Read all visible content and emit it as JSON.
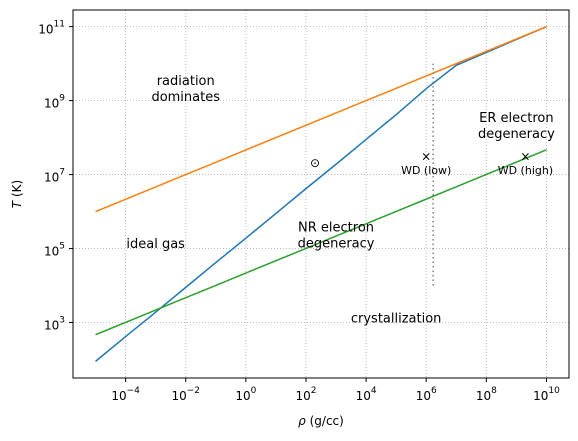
{
  "chart_data": {
    "type": "line",
    "xlabel": "ρ (g/cc)",
    "ylabel": "T (K)",
    "xscale": "log",
    "yscale": "log",
    "grid": true,
    "xlim": [
      1.778e-06,
      56230000000.0
    ],
    "ylim": [
      31.6,
      281800000000.0
    ],
    "xticks": [
      {
        "value": 0.0001,
        "label": "10−4"
      },
      {
        "value": 0.01,
        "label": "10−2"
      },
      {
        "value": 1,
        "label": "100"
      },
      {
        "value": 100,
        "label": "102"
      },
      {
        "value": 10000,
        "label": "104"
      },
      {
        "value": 1000000,
        "label": "106"
      },
      {
        "value": 100000000,
        "label": "108"
      },
      {
        "value": 10000000000,
        "label": "1010"
      }
    ],
    "yticks": [
      {
        "value": 1000,
        "label": "103"
      },
      {
        "value": 100000,
        "label": "105"
      },
      {
        "value": 10000000,
        "label": "107"
      },
      {
        "value": 1000000000,
        "label": "109"
      },
      {
        "value": 100000000000,
        "label": "1011"
      }
    ],
    "x": [
      1e-05,
      0.0001,
      0.001,
      0.01,
      0.1,
      1,
      10,
      100,
      1000,
      10000,
      100000,
      1000000,
      10000000,
      100000000,
      1000000000,
      10000000000
    ],
    "series": [
      {
        "color": "#1f77b4",
        "values": [
          89,
          417,
          1905,
          8913,
          41687,
          190546,
          891251,
          4170000,
          19000000,
          89000000,
          417000000,
          2100000000,
          9000000000,
          20000000000,
          45000000000,
          100000000000
        ]
      },
      {
        "color": "#ff7f0e",
        "values": [
          1000000,
          2150000,
          4640000,
          10000000,
          21500000,
          46400000,
          100000000,
          215000000,
          464000000,
          1000000000,
          2150000000,
          4640000000,
          10000000000,
          21500000000,
          46400000000,
          100000000000
        ]
      },
      {
        "color": "#2ca02c",
        "values": [
          468,
          1008,
          2172,
          4679,
          10080,
          21716,
          46786,
          100797,
          217160,
          467860,
          1008000,
          2170000,
          4680000,
          10080000,
          21700000,
          46800000
        ]
      }
    ],
    "vlines": [
      {
        "x": 1700000,
        "ymin": 10000,
        "ymax": 10000000000,
        "color": "#808080"
      }
    ],
    "markers": [
      {
        "symbol": "⊙",
        "x": 200,
        "y": 20000000
      },
      {
        "symbol": "×",
        "x": 1000000,
        "y": 30000000
      },
      {
        "symbol": "×",
        "x": 2000000000,
        "y": 30000000
      }
    ],
    "annotations": [
      {
        "x": 0.01,
        "y": 2000000000,
        "text": [
          "radiation",
          "dominates"
        ]
      },
      {
        "x": 0.001,
        "y": 130000,
        "text": [
          "ideal gas"
        ]
      },
      {
        "x": 1000,
        "y": 220000,
        "text": [
          "NR electron",
          "degeneracy"
        ]
      },
      {
        "x": 100000,
        "y": 1260,
        "text": [
          "crystallization"
        ]
      },
      {
        "x": 1000000000,
        "y": 200000000,
        "text": [
          "ER electron",
          "degeneracy"
        ]
      },
      {
        "x": 1000000,
        "y": 12600000,
        "text": [
          "WD (low)"
        ],
        "small": true
      },
      {
        "x": 2000000000,
        "y": 12600000,
        "text": [
          "WD (high)"
        ],
        "small": true
      }
    ]
  }
}
